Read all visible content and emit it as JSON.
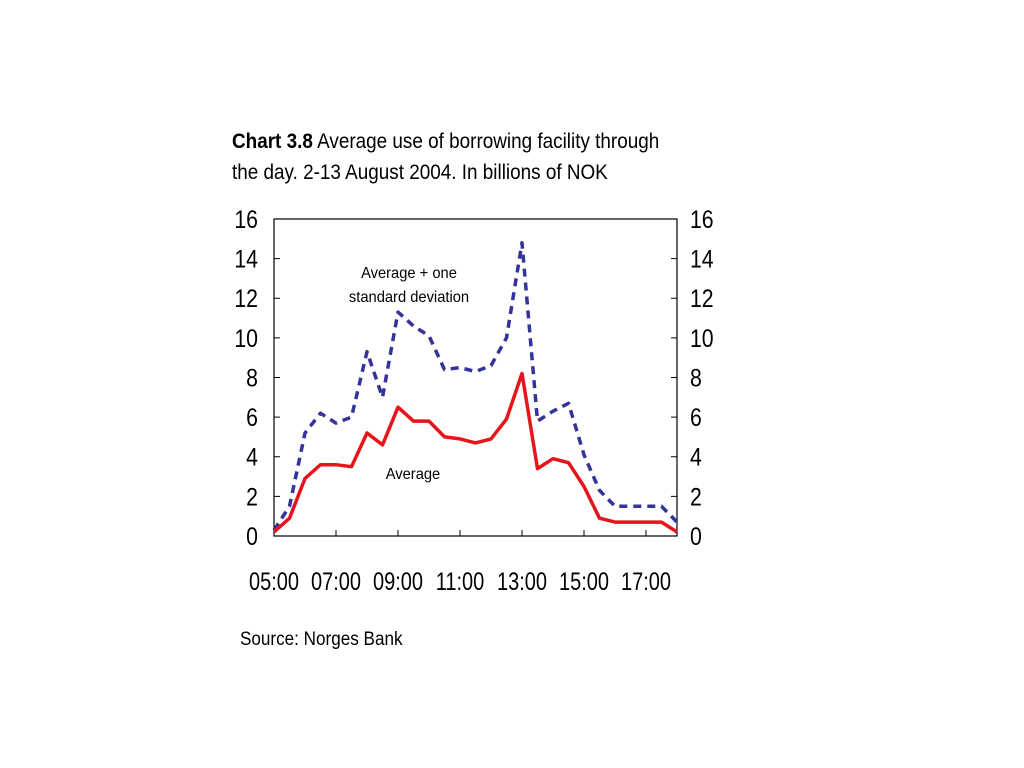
{
  "title": {
    "prefix": "Chart 3.8",
    "text": "Average use of borrowing facility through the day. 2-13 August 2004. In billions of NOK"
  },
  "source": "Source: Norges Bank",
  "colors": {
    "average": "#e8141c",
    "std": "#333399"
  },
  "chart_data": {
    "type": "line",
    "title": "Chart 3.8 Average use of borrowing facility through the day. 2-13 August 2004. In billions of NOK",
    "xlabel": "",
    "ylabel": "",
    "xlim": [
      "05:00",
      "18:00"
    ],
    "ylim": [
      0,
      16
    ],
    "x_ticks": [
      "05:00",
      "07:00",
      "09:00",
      "11:00",
      "13:00",
      "15:00",
      "17:00"
    ],
    "y_ticks": [
      0,
      2,
      4,
      6,
      8,
      10,
      12,
      14,
      16
    ],
    "grid": false,
    "legend": "none",
    "annotations": [
      {
        "lines": [
          "Average + one",
          "standard deviation"
        ],
        "series": "std"
      },
      {
        "lines": [
          "Average"
        ],
        "series": "avg"
      }
    ],
    "series": [
      {
        "key": "std",
        "name": "Average + one standard deviation",
        "style": "dashed",
        "points": [
          [
            "05:00",
            0.3
          ],
          [
            "05:30",
            1.5
          ],
          [
            "06:00",
            5.2
          ],
          [
            "06:30",
            6.2
          ],
          [
            "07:00",
            5.7
          ],
          [
            "07:30",
            6.0
          ],
          [
            "08:00",
            9.3
          ],
          [
            "08:30",
            7.0
          ],
          [
            "09:00",
            11.3
          ],
          [
            "09:30",
            10.6
          ],
          [
            "10:00",
            10.1
          ],
          [
            "10:30",
            8.4
          ],
          [
            "11:00",
            8.5
          ],
          [
            "11:30",
            8.3
          ],
          [
            "12:00",
            8.6
          ],
          [
            "12:30",
            10.0
          ],
          [
            "13:00",
            14.8
          ],
          [
            "13:30",
            5.8
          ],
          [
            "14:00",
            6.3
          ],
          [
            "14:30",
            6.7
          ],
          [
            "15:00",
            4.1
          ],
          [
            "15:30",
            2.3
          ],
          [
            "16:00",
            1.5
          ],
          [
            "16:30",
            1.5
          ],
          [
            "17:00",
            1.5
          ],
          [
            "17:30",
            1.5
          ],
          [
            "18:00",
            0.7
          ]
        ]
      },
      {
        "key": "avg",
        "name": "Average",
        "style": "solid",
        "points": [
          [
            "05:00",
            0.2
          ],
          [
            "05:30",
            0.9
          ],
          [
            "06:00",
            2.9
          ],
          [
            "06:30",
            3.6
          ],
          [
            "07:00",
            3.6
          ],
          [
            "07:30",
            3.5
          ],
          [
            "08:00",
            5.2
          ],
          [
            "08:30",
            4.6
          ],
          [
            "09:00",
            6.5
          ],
          [
            "09:30",
            5.8
          ],
          [
            "10:00",
            5.8
          ],
          [
            "10:30",
            5.0
          ],
          [
            "11:00",
            4.9
          ],
          [
            "11:30",
            4.7
          ],
          [
            "12:00",
            4.9
          ],
          [
            "12:30",
            5.9
          ],
          [
            "13:00",
            8.2
          ],
          [
            "13:30",
            3.4
          ],
          [
            "14:00",
            3.9
          ],
          [
            "14:30",
            3.7
          ],
          [
            "15:00",
            2.5
          ],
          [
            "15:30",
            0.9
          ],
          [
            "16:00",
            0.7
          ],
          [
            "16:30",
            0.7
          ],
          [
            "17:00",
            0.7
          ],
          [
            "17:30",
            0.7
          ],
          [
            "18:00",
            0.2
          ]
        ]
      }
    ]
  }
}
